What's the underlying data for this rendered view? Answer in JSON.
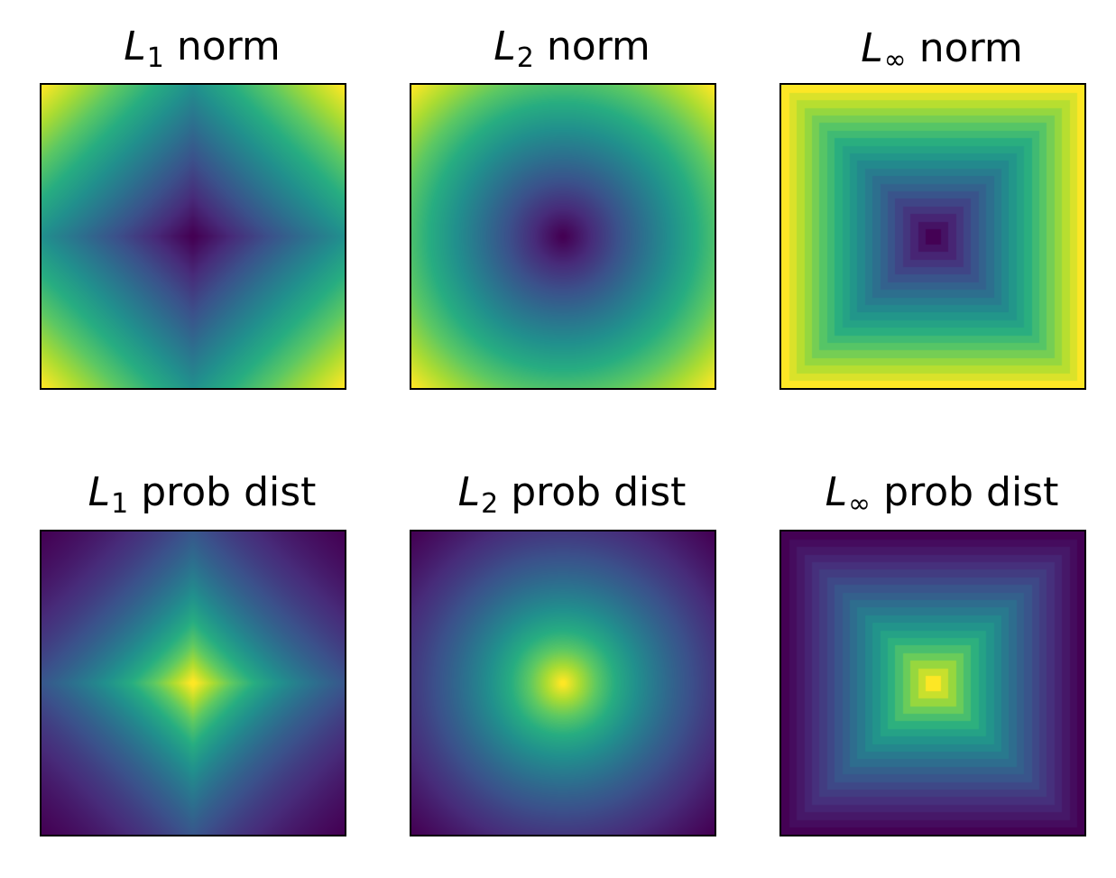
{
  "chart_data": [
    {
      "type": "heatmap",
      "title": {
        "symbol": "L",
        "subscript": "1",
        "rest": "norm"
      },
      "function": "l1_norm",
      "colormap": "viridis",
      "grid": false,
      "ticks": false
    },
    {
      "type": "heatmap",
      "title": {
        "symbol": "L",
        "subscript": "2",
        "rest": "norm"
      },
      "function": "l2_norm",
      "colormap": "viridis",
      "grid": false,
      "ticks": false
    },
    {
      "type": "heatmap",
      "title": {
        "symbol": "L",
        "subscript": "∞",
        "rest": "norm"
      },
      "function": "linf_norm",
      "colormap": "viridis",
      "grid": false,
      "ticks": false
    },
    {
      "type": "heatmap",
      "title": {
        "symbol": "L",
        "subscript": "1",
        "rest": "prob dist"
      },
      "function": "l1_prob",
      "colormap": "viridis",
      "grid": false,
      "ticks": false
    },
    {
      "type": "heatmap",
      "title": {
        "symbol": "L",
        "subscript": "2",
        "rest": "prob dist"
      },
      "function": "l2_prob",
      "colormap": "viridis",
      "grid": false,
      "ticks": false
    },
    {
      "type": "heatmap",
      "title": {
        "symbol": "L",
        "subscript": "∞",
        "rest": "prob dist"
      },
      "function": "linf_prob",
      "colormap": "viridis",
      "grid": false,
      "ticks": false
    }
  ]
}
